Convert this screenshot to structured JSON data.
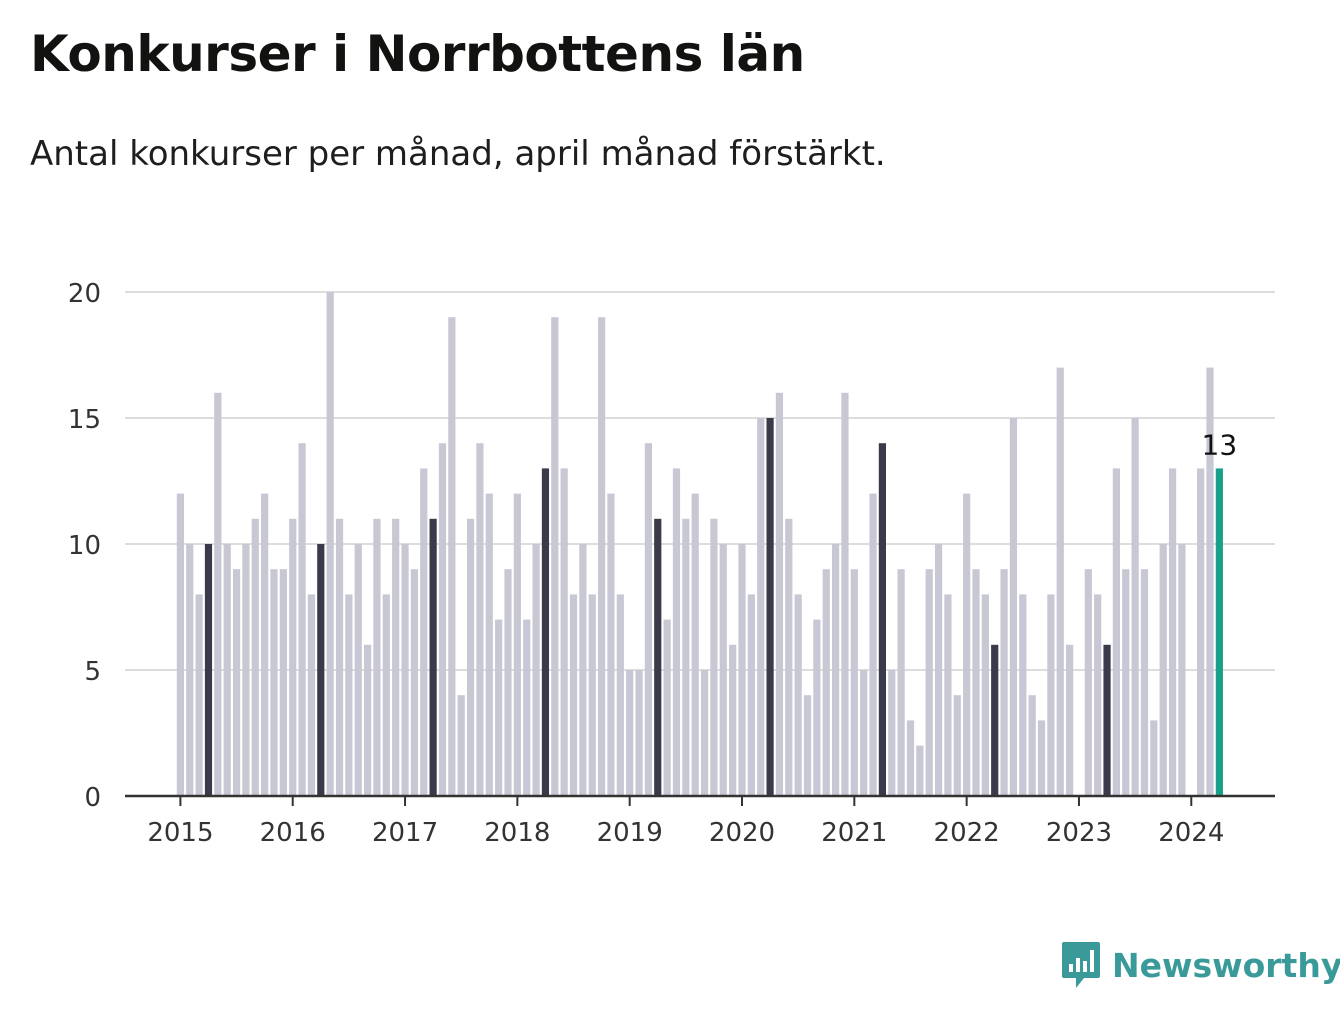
{
  "title": "Konkurser i Norrbottens län",
  "subtitle": "Antal konkurser per månad, april månad förstärkt.",
  "brand": {
    "name": "Newsworthy",
    "icon": "bar-chart-speech-icon"
  },
  "colors": {
    "regular": "#c8c7d4",
    "april": "#3b3a4a",
    "latest": "#17a08a",
    "axis": "#333333",
    "grid": "#dddddd"
  },
  "chart_data": {
    "type": "bar",
    "title": "Konkurser i Norrbottens län",
    "subtitle": "Antal konkurser per månad, april månad förstärkt.",
    "xlabel": "",
    "ylabel": "",
    "ylim": [
      0,
      20
    ],
    "yticks": [
      0,
      5,
      10,
      15,
      20
    ],
    "xticks": [
      "2015",
      "2016",
      "2017",
      "2018",
      "2019",
      "2020",
      "2021",
      "2022",
      "2023",
      "2024"
    ],
    "grid": true,
    "start": "2015-01",
    "highlight_month": "april",
    "annotation": {
      "month": "2024-04",
      "label": "13"
    },
    "values": [
      12,
      10,
      8,
      10,
      16,
      10,
      9,
      10,
      11,
      12,
      9,
      9,
      11,
      14,
      8,
      10,
      20,
      11,
      8,
      10,
      6,
      11,
      8,
      11,
      10,
      9,
      13,
      11,
      14,
      19,
      4,
      11,
      14,
      12,
      7,
      9,
      12,
      7,
      10,
      13,
      19,
      13,
      8,
      10,
      8,
      19,
      12,
      8,
      5,
      5,
      14,
      11,
      7,
      13,
      11,
      12,
      5,
      11,
      10,
      6,
      10,
      8,
      15,
      15,
      16,
      11,
      8,
      4,
      7,
      9,
      10,
      16,
      9,
      5,
      12,
      14,
      5,
      9,
      3,
      2,
      9,
      10,
      8,
      4,
      12,
      9,
      8,
      6,
      9,
      15,
      8,
      4,
      3,
      8,
      17,
      6,
      0,
      9,
      8,
      6,
      13,
      9,
      15,
      9,
      3,
      10,
      13,
      10,
      0,
      13,
      17,
      13
    ]
  }
}
